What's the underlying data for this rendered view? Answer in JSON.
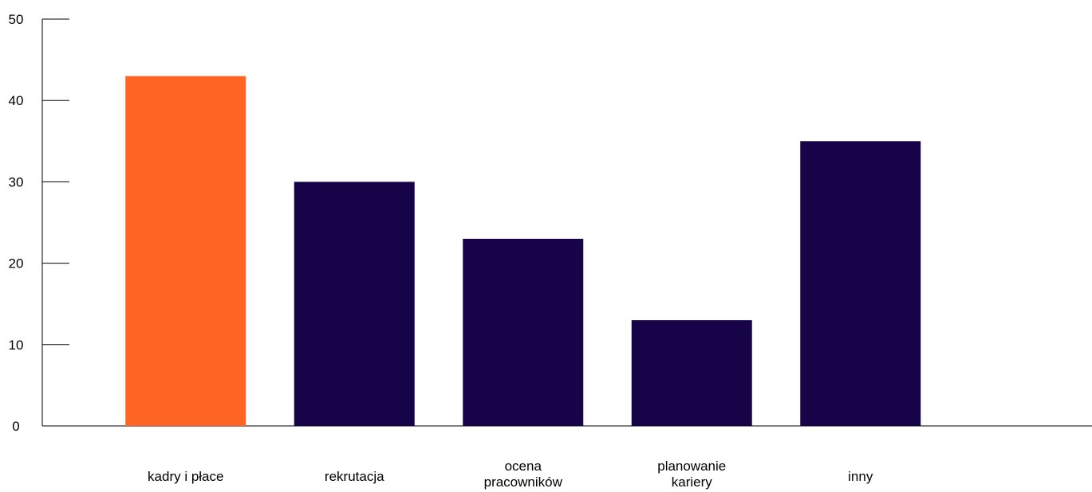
{
  "chart_data": {
    "type": "bar",
    "title": "",
    "xlabel": "",
    "ylabel": "",
    "categories": [
      "kadry i płace",
      "rekrutacja",
      "ocena pracowników",
      "planowanie kariery",
      "inny"
    ],
    "category_lines": [
      [
        "kadry i płace"
      ],
      [
        "rekrutacja"
      ],
      [
        "ocena",
        "pracowników"
      ],
      [
        "planowanie",
        "kariery"
      ],
      [
        "inny"
      ]
    ],
    "values": [
      43,
      30,
      23,
      13,
      35
    ],
    "ylim": [
      0,
      50
    ],
    "yticks": [
      0,
      10,
      20,
      30,
      40,
      50
    ],
    "ytick_labels": [
      "0",
      "10",
      "20",
      "30",
      "40",
      "50"
    ],
    "grid": false,
    "legend": "none",
    "colors": [
      "#FF6522",
      "#170448",
      "#170448",
      "#170448",
      "#170448"
    ]
  }
}
